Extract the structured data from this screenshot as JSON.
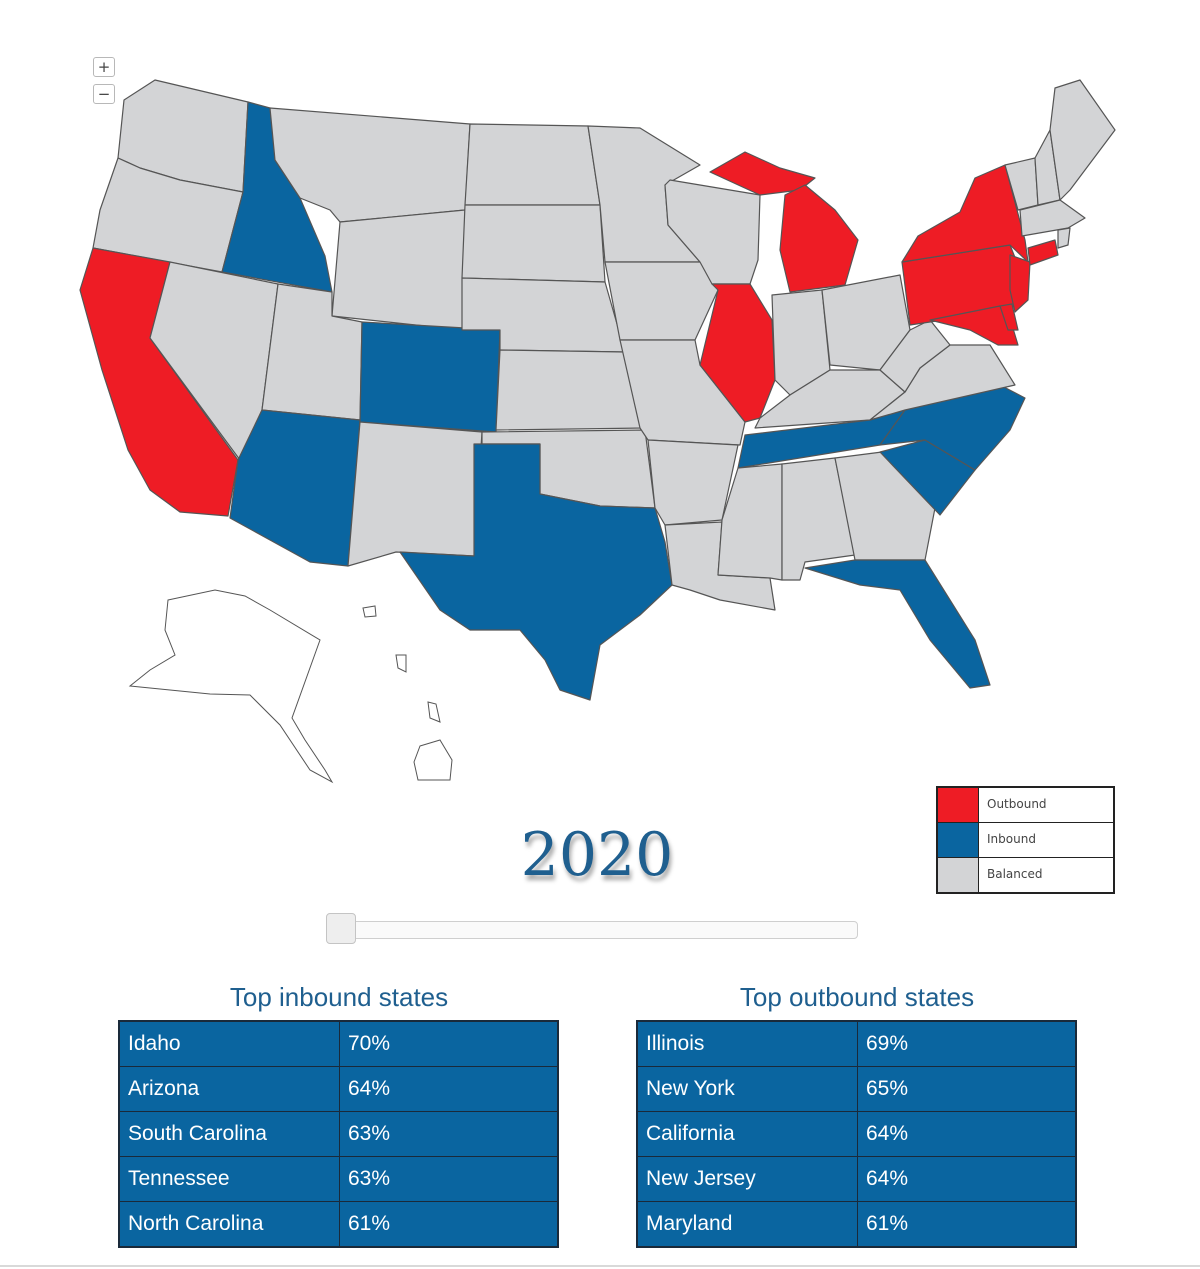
{
  "map": {
    "zoom_in": "+",
    "zoom_out": "−",
    "colors": {
      "outbound": "#ee1c25",
      "inbound": "#0a65a0",
      "balanced": "#d3d4d6"
    },
    "states": {
      "outbound": [
        "California",
        "Illinois",
        "Michigan",
        "New York",
        "Pennsylvania",
        "New Jersey",
        "Maryland",
        "Delaware",
        "Connecticut"
      ],
      "inbound": [
        "Idaho",
        "Colorado",
        "Arizona",
        "Texas",
        "Tennessee",
        "North Carolina",
        "South Carolina",
        "Florida"
      ]
    }
  },
  "legend": {
    "items": [
      {
        "label": "Outbound",
        "color": "#ee1c25"
      },
      {
        "label": "Inbound",
        "color": "#0a65a0"
      },
      {
        "label": "Balanced",
        "color": "#d3d4d6"
      }
    ]
  },
  "year": "2020",
  "slider": {
    "value": 0
  },
  "inbound_table": {
    "title": "Top inbound states",
    "rows": [
      {
        "state": "Idaho",
        "pct": "70%"
      },
      {
        "state": "Arizona",
        "pct": "64%"
      },
      {
        "state": "South Carolina",
        "pct": "63%"
      },
      {
        "state": "Tennessee",
        "pct": "63%"
      },
      {
        "state": "North Carolina",
        "pct": "61%"
      }
    ]
  },
  "outbound_table": {
    "title": "Top outbound states",
    "rows": [
      {
        "state": "Illinois",
        "pct": "69%"
      },
      {
        "state": "New York",
        "pct": "65%"
      },
      {
        "state": "California",
        "pct": "64%"
      },
      {
        "state": "New Jersey",
        "pct": "64%"
      },
      {
        "state": "Maryland",
        "pct": "61%"
      }
    ]
  }
}
